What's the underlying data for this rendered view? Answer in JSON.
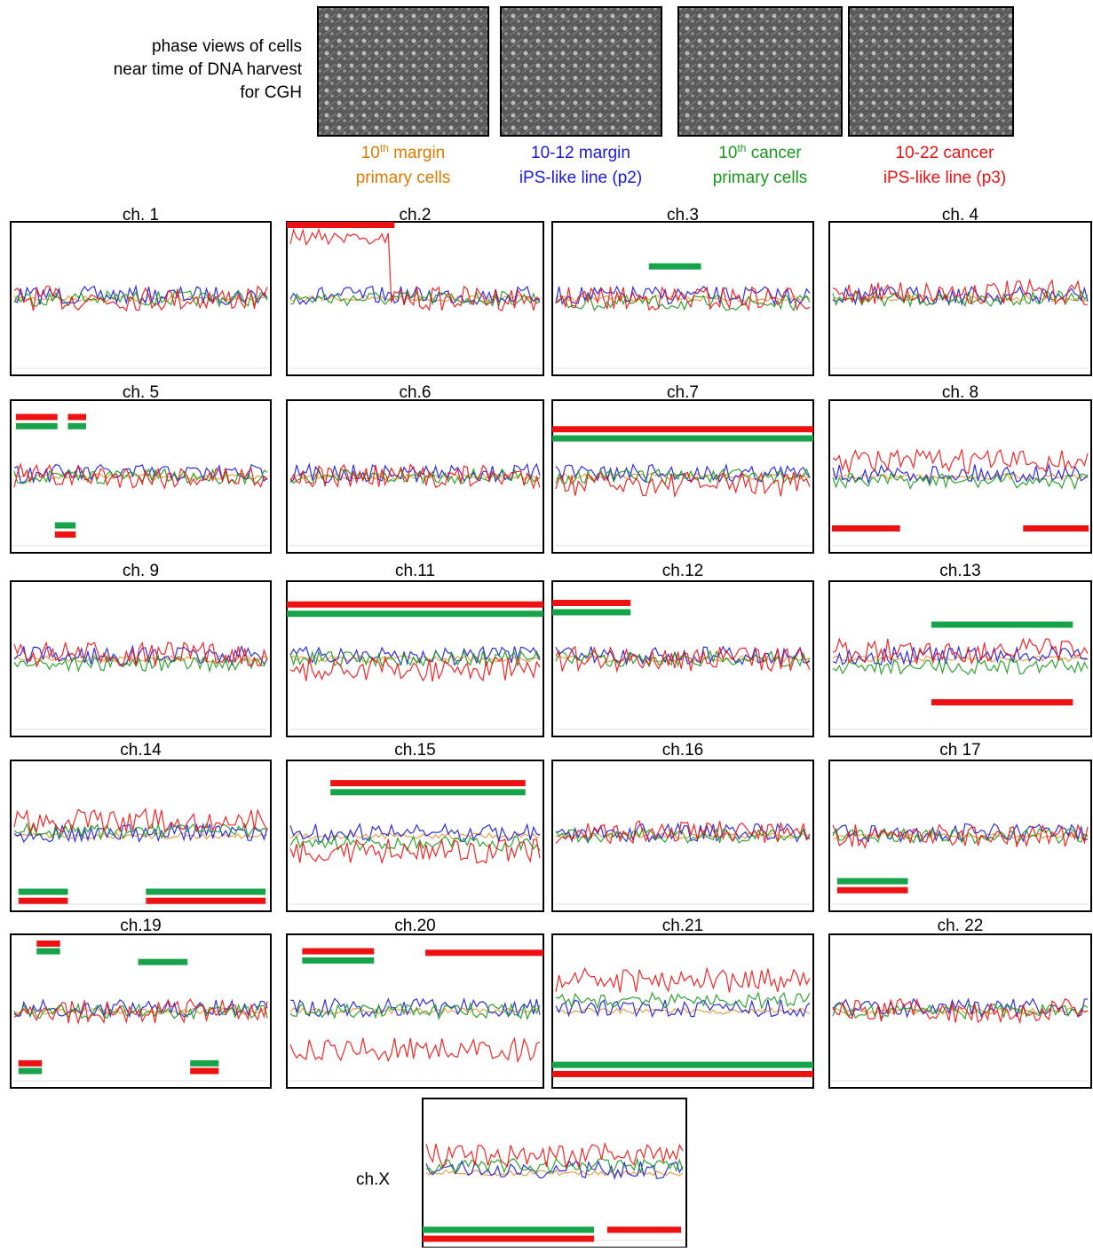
{
  "header": {
    "caption": [
      "phase views of cells",
      "near time of DNA harvest",
      "for CGH"
    ]
  },
  "samples": [
    {
      "line1": "10",
      "sup": "th",
      "rest": " margin",
      "line2": "primary cells",
      "color": "#e07b00"
    },
    {
      "line1": "10-12 margin",
      "line2": "iPS-like line (p2)",
      "color": "#1a1adc"
    },
    {
      "line1": "10",
      "sup": "th",
      "rest": " cancer",
      "line2": "primary cells",
      "color": "#1a9a1a"
    },
    {
      "line1": "10-22 cancer",
      "line2": "iPS-like line (p3)",
      "color": "#ee1111"
    }
  ],
  "panels": [
    "ch. 1",
    "ch.2",
    "ch.3",
    "ch. 4",
    "ch. 5",
    "ch.6",
    "ch.7",
    "ch. 8",
    "ch. 9",
    "ch.11",
    "ch.12",
    "ch.13",
    "ch.14",
    "ch.15",
    "ch.16",
    "ch 17",
    "ch.19",
    "ch.20",
    "ch.21",
    "ch. 22",
    "ch.X"
  ]
}
